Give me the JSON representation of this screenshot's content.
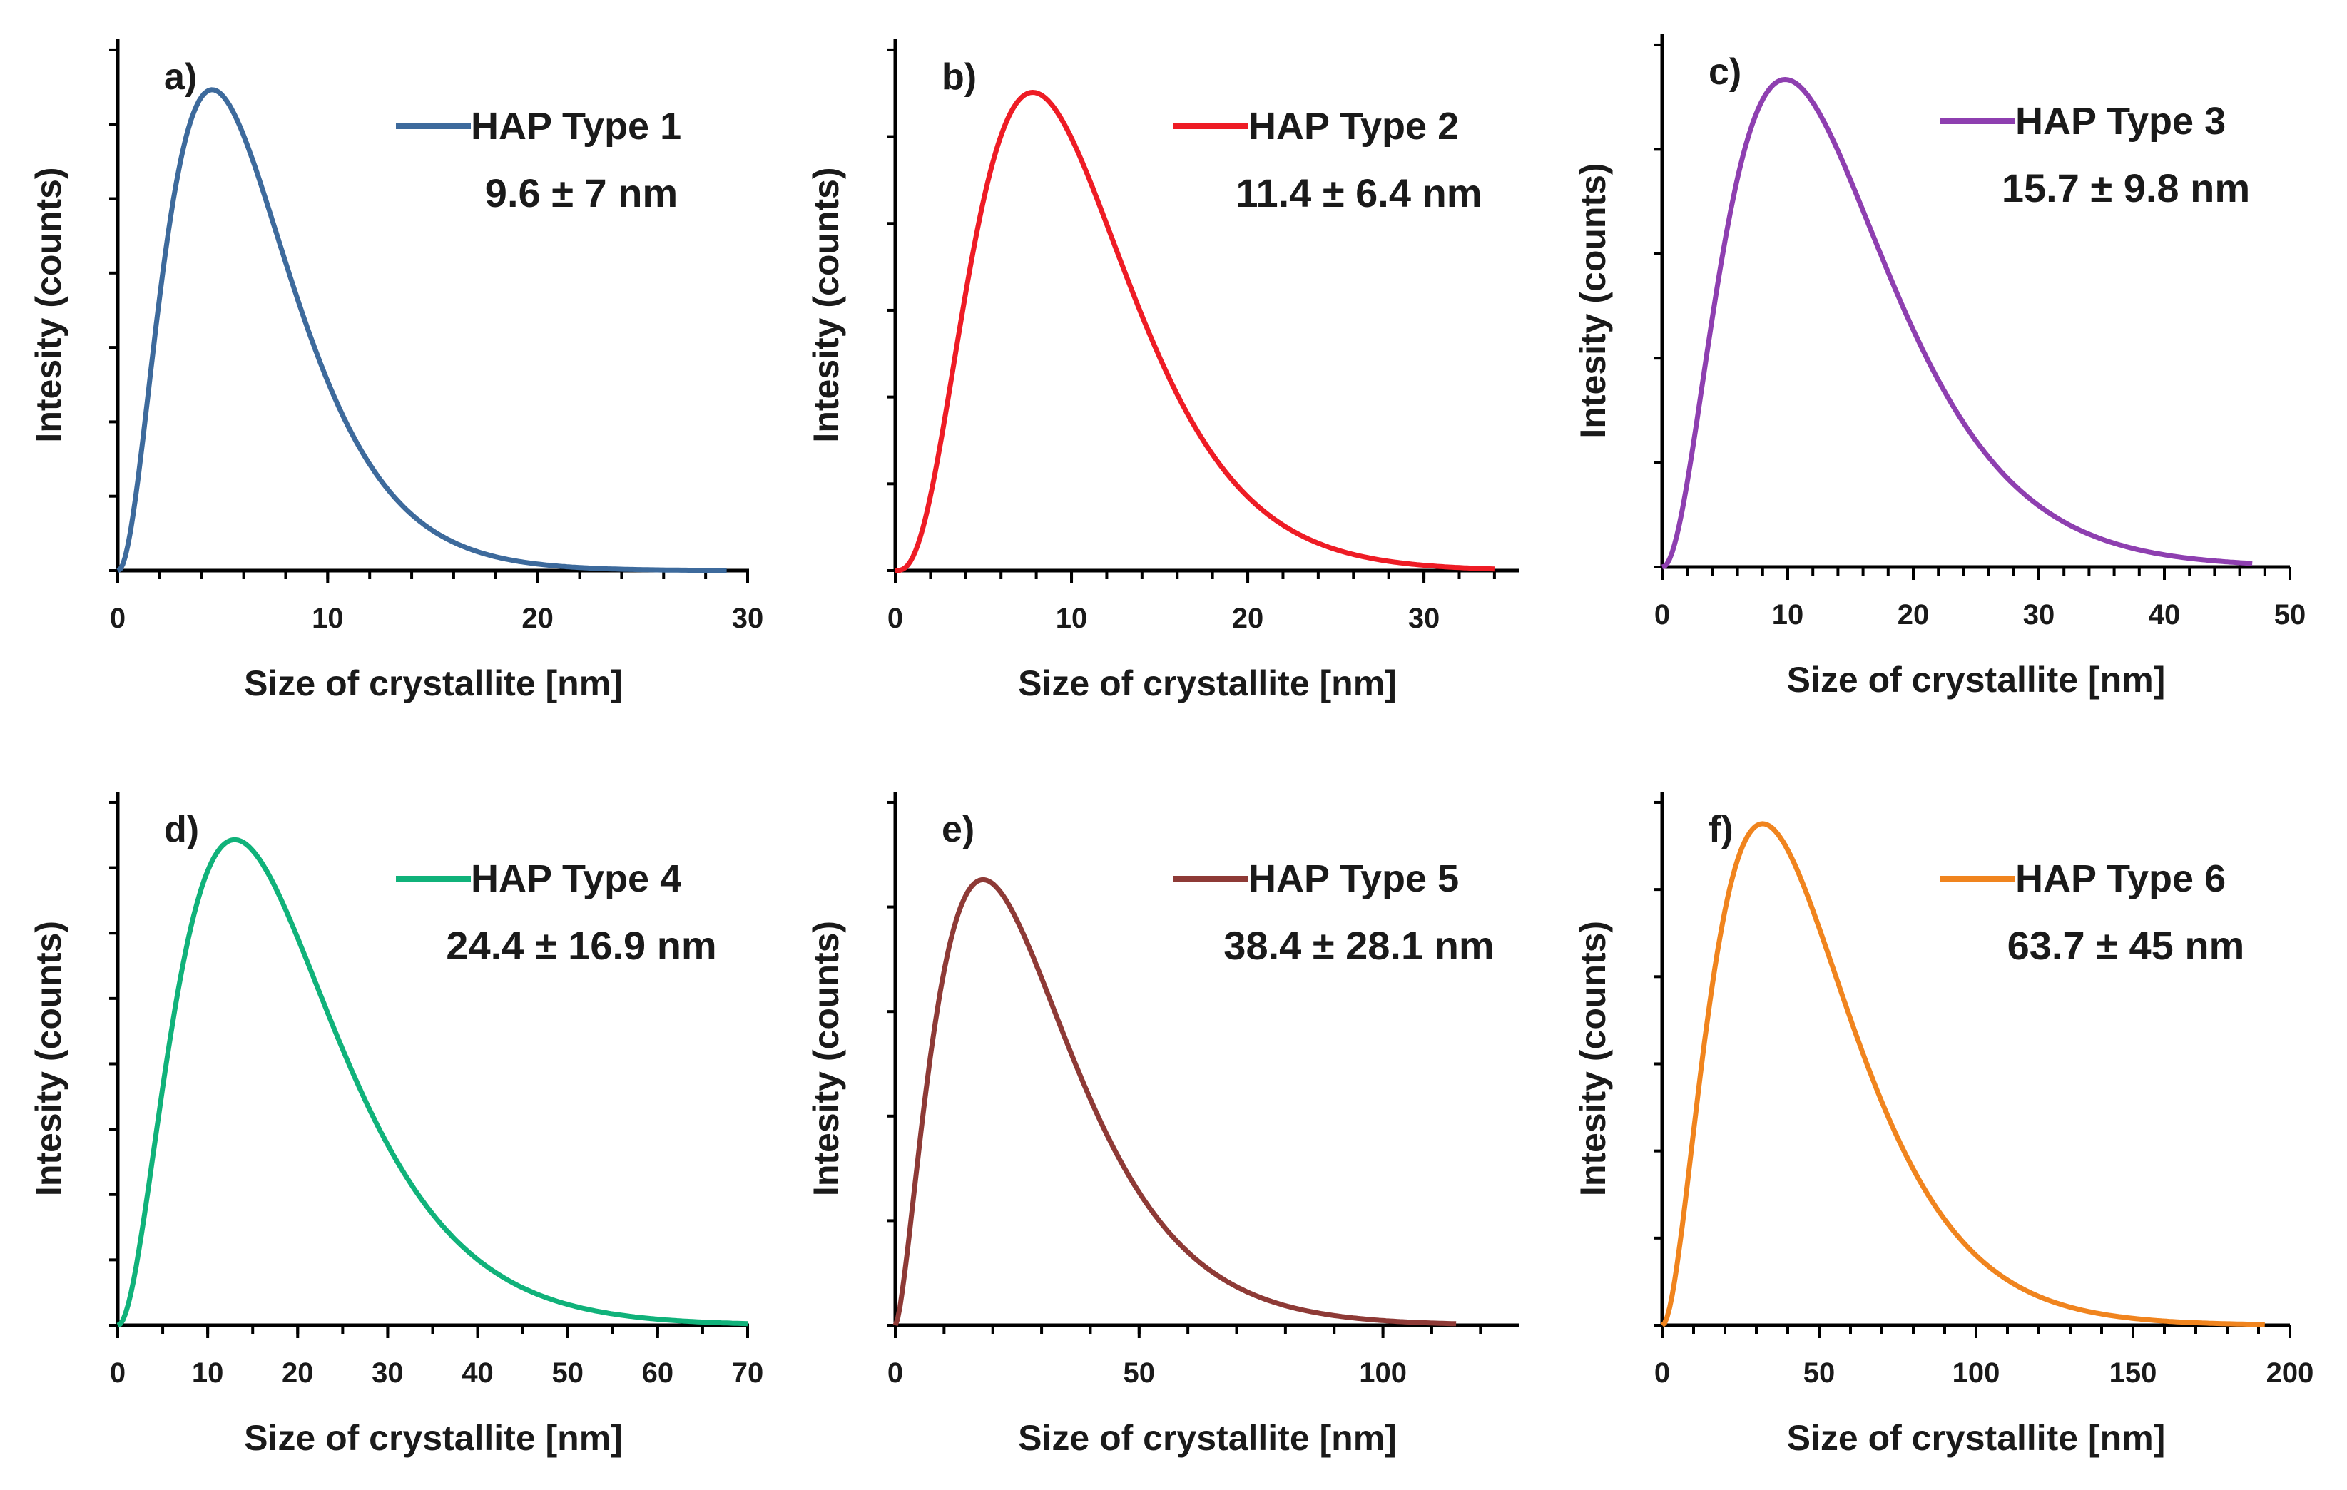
{
  "chart_data": [
    {
      "type": "line",
      "panel": "a)",
      "series": [
        {
          "name": "HAP Type 1",
          "color": "#3d6a9c",
          "mode": 4.5,
          "shape": 3.2,
          "x_end": 29
        }
      ],
      "annotation": "9.6 ± 7 nm",
      "xlabel": "Size of crystallite [nm]",
      "ylabel": "Intesity (counts)",
      "xlim": [
        0,
        30
      ],
      "xticks": [
        0,
        10,
        20,
        30
      ],
      "x_minor_step": 2,
      "y_minor_count": 7
    },
    {
      "type": "line",
      "panel": "b)",
      "series": [
        {
          "name": "HAP Type 2",
          "color": "#ee1c25",
          "mode": 7.8,
          "shape": 4.0,
          "x_end": 34
        }
      ],
      "annotation": "11.4 ± 6.4 nm",
      "xlabel": "Size of crystallite [nm]",
      "ylabel": "Intesity (counts)",
      "xlim": [
        0,
        35
      ],
      "xticks": [
        0,
        10,
        20,
        30
      ],
      "x_minor_step": 2,
      "y_minor_count": 6
    },
    {
      "type": "line",
      "panel": "c)",
      "series": [
        {
          "name": "HAP Type 3",
          "color": "#8e3fb0",
          "mode": 9.8,
          "shape": 3.2,
          "x_end": 47
        }
      ],
      "annotation": "15.7 ± 9.8 nm",
      "xlabel": "Size of crystallite [nm]",
      "ylabel": "Intesity (counts)",
      "xlim": [
        0,
        50
      ],
      "xticks": [
        0,
        10,
        20,
        30,
        40,
        50
      ],
      "x_minor_step": 2,
      "y_minor_count": 5
    },
    {
      "type": "line",
      "panel": "d)",
      "series": [
        {
          "name": "HAP Type 4",
          "color": "#10b27a",
          "mode": 13,
          "shape": 3.1,
          "x_end": 70
        }
      ],
      "annotation": "24.4 ± 16.9 nm",
      "xlabel": "Size of crystallite [nm]",
      "ylabel": "Intesity (counts)",
      "xlim": [
        0,
        70
      ],
      "xticks": [
        0,
        10,
        20,
        30,
        40,
        50,
        60,
        70
      ],
      "x_minor_step": 5,
      "y_minor_count": 8
    },
    {
      "type": "line",
      "panel": "e)",
      "series": [
        {
          "name": "HAP Type 5",
          "color": "#8e3a36",
          "mode": 18,
          "shape": 2.6,
          "x_end": 115
        }
      ],
      "annotation": "38.4 ± 28.1 nm",
      "xlabel": "Size of crystallite [nm]",
      "ylabel": "Intesity (counts)",
      "xlim": [
        0,
        125
      ],
      "xticks": [
        0,
        50,
        100
      ],
      "x_minor_step": 10,
      "y_minor_count": 5
    },
    {
      "type": "line",
      "panel": "f)",
      "series": [
        {
          "name": "HAP Type 6",
          "color": "#f0841e",
          "mode": 32,
          "shape": 3.0,
          "x_end": 192
        }
      ],
      "annotation": "63.7 ± 45 nm",
      "xlabel": "Size of crystallite [nm]",
      "ylabel": "Intesity (counts)",
      "xlim": [
        0,
        200
      ],
      "xticks": [
        0,
        50,
        100,
        150,
        200
      ],
      "x_minor_step": 10,
      "y_minor_count": 6
    }
  ]
}
